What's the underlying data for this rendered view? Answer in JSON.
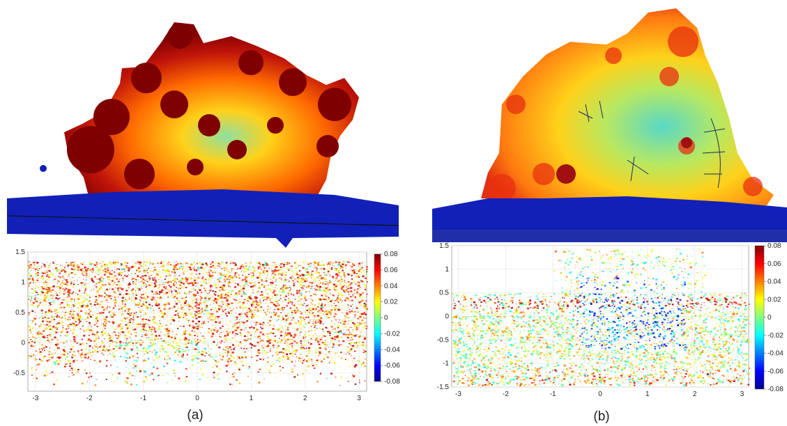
{
  "panels": [
    {
      "caption": "(a)",
      "chart_data": {
        "type": "scatter",
        "title": "",
        "xlabel": "",
        "ylabel": "",
        "xlim": [
          -3.14,
          3.14
        ],
        "ylim": [
          -0.8,
          1.5
        ],
        "x_ticks": [
          "-3",
          "-2",
          "-1",
          "0",
          "1",
          "2",
          "3"
        ],
        "x_tick_values": [
          -3,
          -2,
          -1,
          0,
          1,
          2,
          3
        ],
        "y_ticks": [
          "-0.5",
          "0",
          "0.5",
          "1",
          "1.5"
        ],
        "y_tick_values": [
          -0.5,
          0,
          0.5,
          1,
          1.5
        ],
        "grid": true,
        "colorbar": {
          "colormap": "jet",
          "range": [
            -0.08,
            0.08
          ],
          "ticks": [
            "0.08",
            "0.06",
            "0.04",
            "0.02",
            "0",
            "-0.02",
            "-0.04",
            "-0.06",
            "-0.08"
          ],
          "tick_values": [
            0.08,
            0.06,
            0.04,
            0.02,
            0,
            -0.02,
            -0.04,
            -0.06,
            -0.08
          ]
        },
        "data_extent": {
          "x": [
            -3.14,
            3.14
          ],
          "y": [
            -0.7,
            1.35
          ]
        },
        "dominant_values": "mostly 0.05 to 0.08 (dark red / orange), scattered lower values near the bottom"
      }
    },
    {
      "caption": "(b)",
      "chart_data": {
        "type": "scatter",
        "title": "",
        "xlabel": "",
        "ylabel": "",
        "xlim": [
          -3.14,
          3.14
        ],
        "ylim": [
          -1.5,
          1.5
        ],
        "x_ticks": [
          "-3",
          "-2",
          "-1",
          "0",
          "1",
          "2",
          "3"
        ],
        "x_tick_values": [
          -3,
          -2,
          -1,
          0,
          1,
          2,
          3
        ],
        "y_ticks": [
          "-1.5",
          "-1",
          "-0.5",
          "0",
          "0.5",
          "1",
          "1.5"
        ],
        "y_tick_values": [
          -1.5,
          -1,
          -0.5,
          0,
          0.5,
          1,
          1.5
        ],
        "grid": true,
        "colorbar": {
          "colormap": "jet",
          "range": [
            -0.08,
            0.08
          ],
          "ticks": [
            "0.08",
            "0.06",
            "0.04",
            "0.02",
            "0",
            "-0.02",
            "-0.04",
            "-0.06",
            "-0.08"
          ],
          "tick_values": [
            0.08,
            0.06,
            0.04,
            0.02,
            0,
            -0.02,
            -0.04,
            -0.06,
            -0.08
          ]
        },
        "data_extent": {
          "x": [
            -3.14,
            3.14
          ],
          "y": [
            -1.45,
            1.45
          ]
        },
        "dominant_values": "mixed -0.08 to 0.08; dark red band near y = 0.3, blue cluster near x = 0 to 1"
      }
    }
  ],
  "colors": {
    "ground": "#1220b8",
    "dark_red": "#7f0000",
    "orange": "#ff6a00",
    "yellow": "#ffd11a",
    "cyan": "#40e0c0"
  }
}
